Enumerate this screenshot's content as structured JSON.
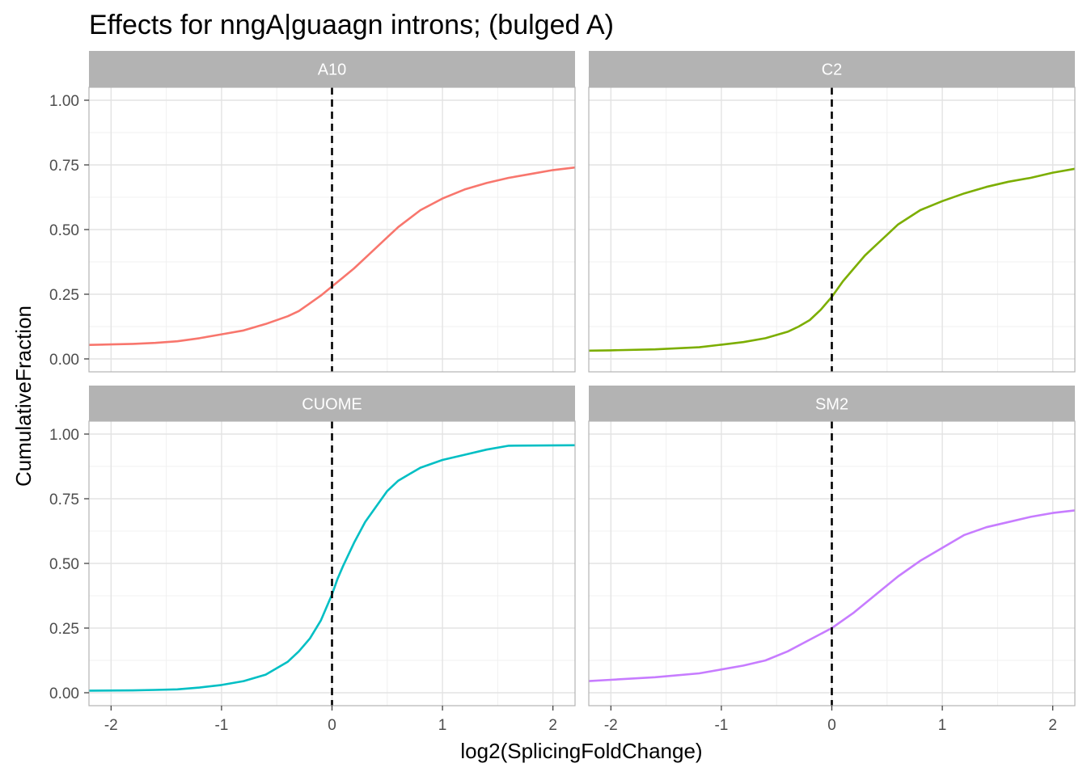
{
  "chart_data": {
    "type": "line",
    "title": "Effects for nngA|guaagn introns; (bulged A)",
    "xlabel": "log2(SplicingFoldChange)",
    "ylabel": "CumulativeFraction",
    "xlim": [
      -2.2,
      2.2
    ],
    "ylim": [
      -0.05,
      1.05
    ],
    "x_ticks": [
      -2,
      -1,
      0,
      1,
      2
    ],
    "x_tick_labels": [
      "-2",
      "-1",
      "0",
      "1",
      "2"
    ],
    "y_ticks": [
      0,
      0.25,
      0.5,
      0.75,
      1.0
    ],
    "y_tick_labels": [
      "0.00",
      "0.25",
      "0.50",
      "0.75",
      "1.00"
    ],
    "grid": true,
    "legend": "none",
    "reference_line": {
      "x": 0,
      "style": "dashed",
      "color": "#000000"
    },
    "panel_strip_color": "#b3b3b3",
    "panels": [
      {
        "label": "A10",
        "color": "#f8766d",
        "x": [
          -2.2,
          -2.0,
          -1.8,
          -1.6,
          -1.4,
          -1.2,
          -1.0,
          -0.8,
          -0.6,
          -0.4,
          -0.3,
          -0.2,
          -0.1,
          0.0,
          0.1,
          0.2,
          0.3,
          0.4,
          0.5,
          0.6,
          0.8,
          1.0,
          1.2,
          1.4,
          1.6,
          1.8,
          2.0,
          2.2
        ],
        "y": [
          0.054,
          0.056,
          0.058,
          0.062,
          0.068,
          0.08,
          0.095,
          0.11,
          0.135,
          0.165,
          0.185,
          0.215,
          0.245,
          0.28,
          0.315,
          0.35,
          0.39,
          0.43,
          0.47,
          0.51,
          0.575,
          0.62,
          0.655,
          0.68,
          0.7,
          0.715,
          0.73,
          0.74
        ]
      },
      {
        "label": "C2",
        "color": "#7cae00",
        "x": [
          -2.2,
          -2.0,
          -1.6,
          -1.2,
          -1.0,
          -0.8,
          -0.6,
          -0.4,
          -0.3,
          -0.2,
          -0.1,
          0.0,
          0.1,
          0.2,
          0.3,
          0.4,
          0.5,
          0.6,
          0.8,
          1.0,
          1.2,
          1.4,
          1.6,
          1.8,
          2.0,
          2.2
        ],
        "y": [
          0.032,
          0.033,
          0.037,
          0.045,
          0.055,
          0.065,
          0.08,
          0.105,
          0.125,
          0.15,
          0.19,
          0.24,
          0.3,
          0.35,
          0.4,
          0.44,
          0.48,
          0.52,
          0.575,
          0.61,
          0.64,
          0.665,
          0.685,
          0.7,
          0.72,
          0.735
        ]
      },
      {
        "label": "CUOME",
        "color": "#00bfc4",
        "x": [
          -2.2,
          -1.8,
          -1.6,
          -1.4,
          -1.2,
          -1.0,
          -0.8,
          -0.6,
          -0.4,
          -0.3,
          -0.2,
          -0.1,
          0.0,
          0.05,
          0.1,
          0.2,
          0.3,
          0.4,
          0.5,
          0.6,
          0.8,
          1.0,
          1.2,
          1.4,
          1.6,
          2.2
        ],
        "y": [
          0.008,
          0.009,
          0.011,
          0.013,
          0.02,
          0.03,
          0.045,
          0.07,
          0.12,
          0.16,
          0.21,
          0.28,
          0.38,
          0.44,
          0.49,
          0.58,
          0.66,
          0.72,
          0.78,
          0.82,
          0.87,
          0.9,
          0.92,
          0.94,
          0.955,
          0.957
        ]
      },
      {
        "label": "SM2",
        "color": "#c77cff",
        "x": [
          -2.2,
          -2.0,
          -1.6,
          -1.2,
          -1.0,
          -0.8,
          -0.6,
          -0.4,
          -0.2,
          0.0,
          0.2,
          0.4,
          0.6,
          0.8,
          1.0,
          1.2,
          1.4,
          1.6,
          1.8,
          2.0,
          2.2
        ],
        "y": [
          0.045,
          0.05,
          0.06,
          0.075,
          0.09,
          0.105,
          0.125,
          0.16,
          0.205,
          0.25,
          0.31,
          0.38,
          0.45,
          0.51,
          0.56,
          0.61,
          0.64,
          0.66,
          0.68,
          0.695,
          0.705
        ]
      }
    ]
  }
}
